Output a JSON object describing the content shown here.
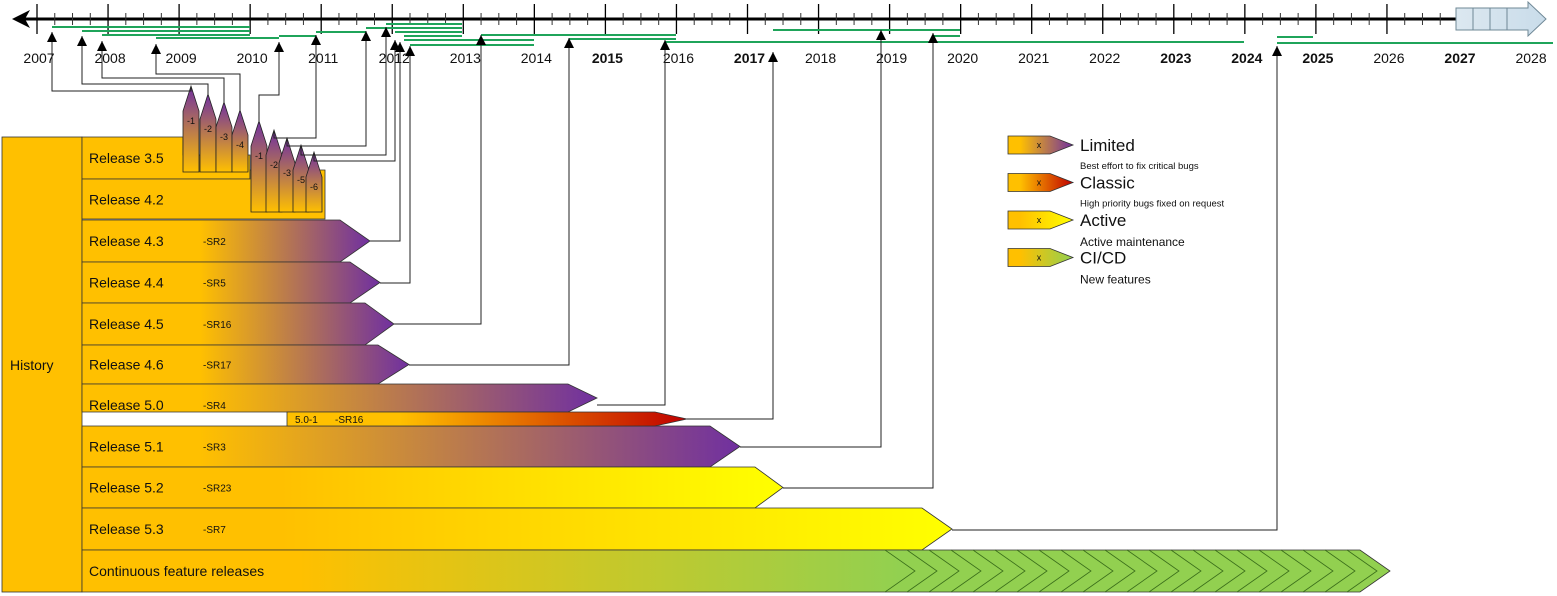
{
  "timeline": {
    "years": [
      "2007",
      "2008",
      "2009",
      "2010",
      "2011",
      "2012",
      "2013",
      "2014",
      "2015",
      "2016",
      "2017",
      "2018",
      "2019",
      "2020",
      "2021",
      "2022",
      "2023",
      "2024",
      "2025",
      "2026",
      "2027",
      "2028"
    ],
    "bold_years": [
      "2015",
      "2017",
      "2023",
      "2024",
      "2025",
      "2027"
    ]
  },
  "history_label": "History",
  "releases": [
    {
      "label": "Release 3.5",
      "sr": ""
    },
    {
      "label": "Release 4.2",
      "sr": ""
    },
    {
      "label": "Release 4.3",
      "sr": "-SR2",
      "support": "Limited"
    },
    {
      "label": "Release 4.4",
      "sr": "-SR5",
      "support": "Limited"
    },
    {
      "label": "Release 4.5",
      "sr": "-SR16",
      "support": "Limited"
    },
    {
      "label": "Release 4.6",
      "sr": "-SR17",
      "support": "Limited"
    },
    {
      "label": "Release 5.0",
      "sr": "-SR4",
      "support": "Limited"
    },
    {
      "label": "Release 5.1",
      "sr": "-SR3",
      "support": "Limited"
    },
    {
      "label": "Release 5.2",
      "sr": "-SR23",
      "support": "Active"
    },
    {
      "label": "Release 5.3",
      "sr": "-SR7",
      "support": "Active"
    },
    {
      "label": "Continuous feature releases",
      "sr": "",
      "support": "CI/CD"
    }
  ],
  "sub_release": {
    "label": "5.0-1",
    "sr": "-SR16",
    "support": "Classic"
  },
  "patches_35": [
    "-1",
    "-2",
    "-3",
    "-4"
  ],
  "patches_42": [
    "-1",
    "-2",
    "-3",
    "-5",
    "-6"
  ],
  "legend": [
    {
      "mark": "x",
      "title": "Limited",
      "desc": "Best effort to fix critical bugs",
      "color": "#7030A0"
    },
    {
      "mark": "x",
      "title": "Classic",
      "desc": "High priority bugs fixed on request",
      "color": "#C00000"
    },
    {
      "mark": "x",
      "title": "Active",
      "desc": "Active maintenance",
      "color": "#FFFF00"
    },
    {
      "mark": "x",
      "title": "CI/CD",
      "desc": "New features",
      "color": "#92D050"
    }
  ],
  "colors": {
    "base": "#FFC000",
    "limited": "#7030A0",
    "classic": "#C00000",
    "active": "#FFFF00",
    "cicd": "#92D050",
    "green_line": "#1FA45A"
  }
}
